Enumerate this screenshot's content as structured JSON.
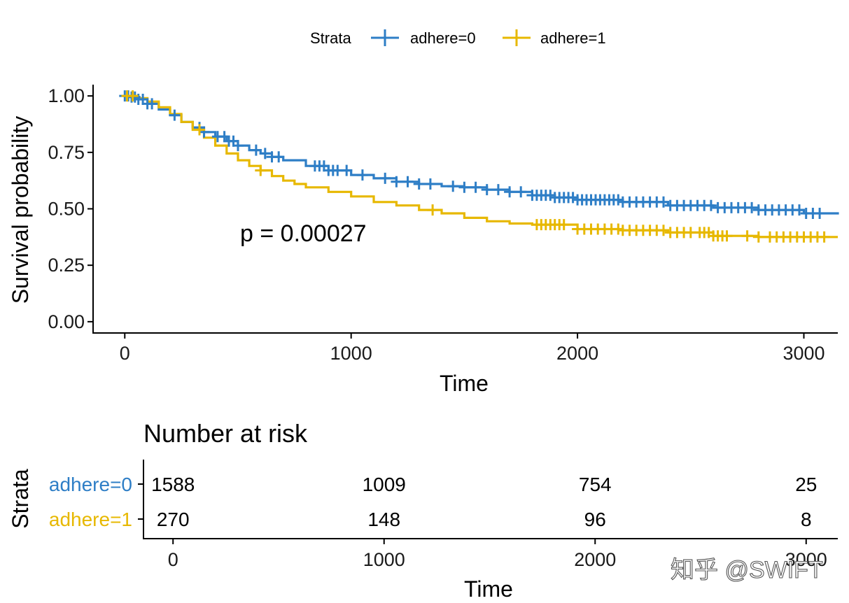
{
  "legend": {
    "title": "Strata"
  },
  "annotation": {
    "pvalue": "p = 0.00027"
  },
  "watermark": "知乎 @SWIFT",
  "colors": {
    "adhere0": "#2E7EC6",
    "adhere1": "#E7B800"
  },
  "chart_data": [
    {
      "type": "line",
      "subtype": "kaplan-meier survival curve with censoring marks",
      "xlabel": "Time",
      "ylabel": "Survival probability",
      "xlim": [
        -140,
        3150
      ],
      "ylim": [
        -0.05,
        1.05
      ],
      "xticks": [
        0,
        1000,
        2000,
        3000
      ],
      "yticks": [
        0.0,
        0.25,
        0.5,
        0.75,
        1.0
      ],
      "yticklabels": [
        "0.00",
        "0.25",
        "0.50",
        "0.75",
        "1.00"
      ],
      "xticklabels": [
        "0",
        "1000",
        "2000",
        "3000"
      ],
      "legend_position": "top",
      "grid": false,
      "series": [
        {
          "name": "adhere=0",
          "color": "#2E7EC6",
          "x": [
            0,
            30,
            60,
            100,
            150,
            200,
            250,
            300,
            350,
            400,
            450,
            500,
            550,
            600,
            650,
            700,
            800,
            900,
            1000,
            1100,
            1200,
            1300,
            1400,
            1500,
            1600,
            1700,
            1800,
            1900,
            2000,
            2200,
            2400,
            2600,
            2800,
            3000,
            3150
          ],
          "y": [
            1.0,
            0.995,
            0.985,
            0.965,
            0.94,
            0.915,
            0.885,
            0.86,
            0.84,
            0.82,
            0.8,
            0.78,
            0.76,
            0.745,
            0.73,
            0.715,
            0.69,
            0.67,
            0.65,
            0.635,
            0.62,
            0.61,
            0.6,
            0.595,
            0.585,
            0.575,
            0.56,
            0.55,
            0.54,
            0.53,
            0.515,
            0.505,
            0.495,
            0.48,
            0.475
          ],
          "censored_x": [
            0,
            15,
            30,
            45,
            60,
            80,
            100,
            120,
            220,
            330,
            350,
            410,
            440,
            460,
            480,
            500,
            580,
            620,
            650,
            680,
            840,
            860,
            880,
            900,
            920,
            940,
            980,
            1050,
            1150,
            1200,
            1250,
            1300,
            1350,
            1450,
            1500,
            1550,
            1600,
            1650,
            1700,
            1750,
            1800,
            1820,
            1840,
            1860,
            1880,
            1900,
            1920,
            1940,
            1960,
            1980,
            2000,
            2020,
            2040,
            2060,
            2080,
            2100,
            2120,
            2140,
            2160,
            2180,
            2200,
            2230,
            2260,
            2290,
            2320,
            2350,
            2380,
            2410,
            2440,
            2470,
            2500,
            2530,
            2560,
            2590,
            2620,
            2650,
            2680,
            2710,
            2740,
            2770,
            2800,
            2830,
            2860,
            2890,
            2920,
            2950,
            2980,
            3010,
            3040,
            3070
          ]
        },
        {
          "name": "adhere=1",
          "color": "#E7B800",
          "x": [
            0,
            50,
            100,
            150,
            200,
            250,
            300,
            350,
            400,
            450,
            500,
            550,
            600,
            650,
            700,
            750,
            800,
            900,
            1000,
            1100,
            1200,
            1300,
            1400,
            1500,
            1600,
            1700,
            1800,
            2000,
            2200,
            2400,
            2600,
            2800,
            3000,
            3150
          ],
          "y": [
            1.0,
            0.99,
            0.975,
            0.95,
            0.92,
            0.885,
            0.85,
            0.815,
            0.78,
            0.745,
            0.715,
            0.69,
            0.67,
            0.645,
            0.625,
            0.61,
            0.595,
            0.575,
            0.555,
            0.53,
            0.515,
            0.495,
            0.48,
            0.46,
            0.445,
            0.435,
            0.43,
            0.41,
            0.405,
            0.395,
            0.38,
            0.375,
            0.375,
            0.375
          ],
          "censored_x": [
            10,
            35,
            330,
            600,
            1360,
            1820,
            1840,
            1860,
            1880,
            1900,
            1920,
            1940,
            2000,
            2030,
            2060,
            2090,
            2120,
            2150,
            2180,
            2200,
            2230,
            2260,
            2290,
            2320,
            2350,
            2380,
            2410,
            2440,
            2470,
            2500,
            2540,
            2560,
            2580,
            2600,
            2620,
            2640,
            2660,
            2750,
            2800,
            2850,
            2880,
            2910,
            2940,
            2970,
            3000,
            3030,
            3060,
            3090
          ]
        }
      ]
    },
    {
      "type": "table",
      "title": "Number at risk",
      "xlabel": "Time",
      "ylabel": "Strata",
      "xlim": [
        -140,
        3150
      ],
      "xticks": [
        0,
        1000,
        2000,
        3000
      ],
      "xticklabels": [
        "0",
        "1000",
        "2000",
        "3000"
      ],
      "rows": [
        {
          "name": "adhere=0",
          "color": "#2E7EC6",
          "values": [
            1588,
            1009,
            754,
            25
          ]
        },
        {
          "name": "adhere=1",
          "color": "#E7B800",
          "values": [
            270,
            148,
            96,
            8
          ]
        }
      ]
    }
  ]
}
